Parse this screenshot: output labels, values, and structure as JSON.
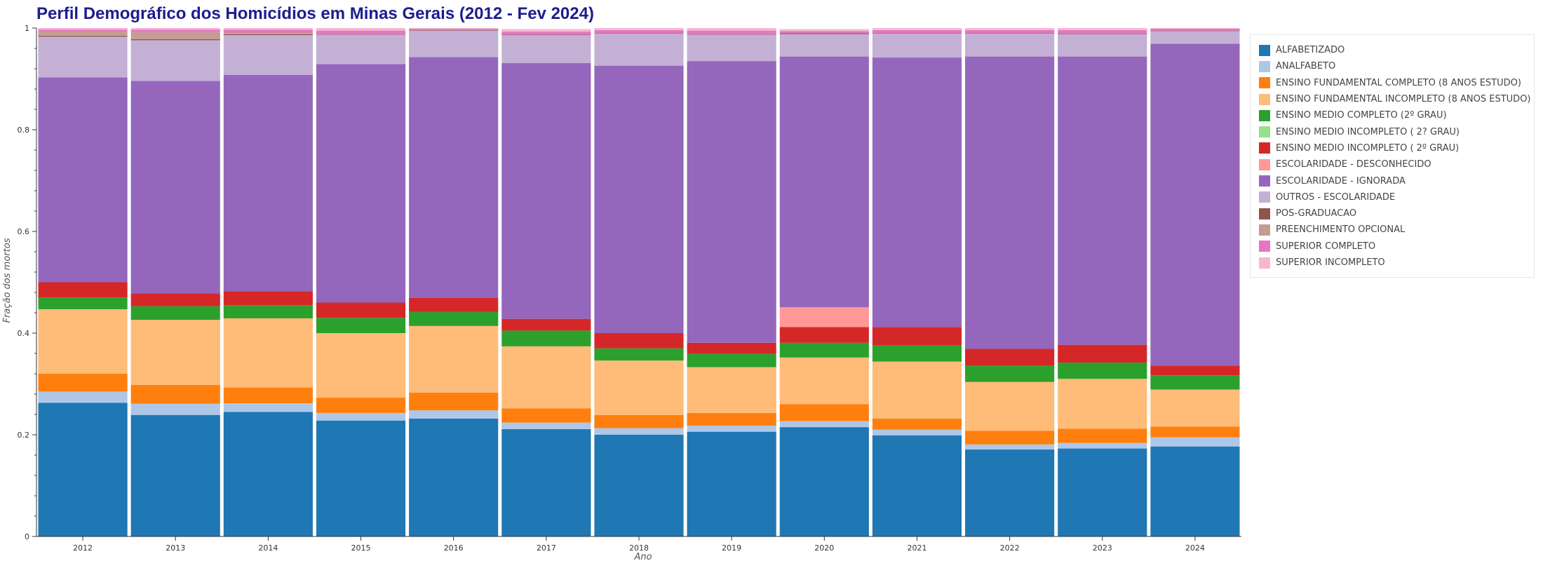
{
  "title": "Perfil Demográfico dos Homicídios em Minas Gerais (2012 - Fev 2024)",
  "chart_data": {
    "type": "bar",
    "stacked": true,
    "normalized": true,
    "title": "Perfil Demográfico dos Homicídios em Minas Gerais (2012 - Fev 2024)",
    "xlabel": "Ano",
    "ylabel": "Fração dos mortos",
    "ylim": [
      0,
      1
    ],
    "yticks": [
      "0",
      "0.2",
      "0.4",
      "0.6",
      "0.8",
      "1"
    ],
    "legend_position": "right",
    "categories": [
      "2012",
      "2013",
      "2014",
      "2015",
      "2016",
      "2017",
      "2018",
      "2019",
      "2020",
      "2021",
      "2022",
      "2023",
      "2024"
    ],
    "series": [
      {
        "name": "ALFABETIZADO",
        "color": "#1f77b4",
        "values": [
          0.263,
          0.239,
          0.245,
          0.228,
          0.232,
          0.211,
          0.2,
          0.206,
          0.215,
          0.199,
          0.171,
          0.173,
          0.177
        ]
      },
      {
        "name": "ANALFABETO",
        "color": "#aec7e8",
        "values": [
          0.022,
          0.022,
          0.017,
          0.015,
          0.016,
          0.013,
          0.013,
          0.012,
          0.012,
          0.011,
          0.01,
          0.011,
          0.018
        ]
      },
      {
        "name": "ENSINO FUNDAMENTAL COMPLETO (8 ANOS ESTUDO)",
        "color": "#ff7f0e",
        "values": [
          0.035,
          0.037,
          0.031,
          0.03,
          0.035,
          0.028,
          0.026,
          0.025,
          0.033,
          0.022,
          0.027,
          0.028,
          0.021
        ]
      },
      {
        "name": "ENSINO FUNDAMENTAL INCOMPLETO (8 ANOS ESTUDO)",
        "color": "#ffbb78",
        "values": [
          0.127,
          0.128,
          0.136,
          0.127,
          0.131,
          0.122,
          0.107,
          0.09,
          0.092,
          0.112,
          0.096,
          0.098,
          0.073
        ]
      },
      {
        "name": "ENSINO MEDIO COMPLETO (2º GRAU)",
        "color": "#2ca02c",
        "values": [
          0.023,
          0.027,
          0.026,
          0.03,
          0.028,
          0.031,
          0.024,
          0.026,
          0.029,
          0.032,
          0.032,
          0.032,
          0.028
        ]
      },
      {
        "name": "ENSINO MEDIO INCOMPLETO ( 2? GRAU)",
        "color": "#98df8a",
        "values": [
          0,
          0,
          0,
          0,
          0,
          0,
          0,
          0,
          0,
          0,
          0,
          0,
          0
        ]
      },
      {
        "name": "ENSINO MEDIO INCOMPLETO ( 2º GRAU)",
        "color": "#d62728",
        "values": [
          0.03,
          0.025,
          0.027,
          0.03,
          0.027,
          0.023,
          0.03,
          0.022,
          0.031,
          0.036,
          0.033,
          0.035,
          0.019
        ]
      },
      {
        "name": "ESCOLARIDADE - DESCONHECIDO",
        "color": "#ff9896",
        "values": [
          0,
          0,
          0,
          0,
          0,
          0,
          0,
          0,
          0.039,
          0,
          0,
          0,
          0
        ]
      },
      {
        "name": "ESCOLARIDADE - IGNORADA",
        "color": "#9467bd",
        "values": [
          0.403,
          0.418,
          0.426,
          0.469,
          0.474,
          0.503,
          0.526,
          0.554,
          0.493,
          0.53,
          0.575,
          0.567,
          0.633
        ]
      },
      {
        "name": "OUTROS - ESCOLARIDADE",
        "color": "#c5b0d5",
        "values": [
          0.08,
          0.08,
          0.078,
          0.058,
          0.052,
          0.055,
          0.063,
          0.052,
          0.044,
          0.047,
          0.045,
          0.044,
          0.025
        ]
      },
      {
        "name": "POS-GRADUACAO",
        "color": "#8c564b",
        "values": [
          0.002,
          0.002,
          0.002,
          0.001,
          0.001,
          0.001,
          0.001,
          0.001,
          0.002,
          0.001,
          0.001,
          0.001,
          0.001
        ]
      },
      {
        "name": "PREENCHIMENTO OPCIONAL",
        "color": "#c49c94",
        "values": [
          0.008,
          0.014,
          0.003,
          0,
          0,
          0,
          0,
          0,
          0,
          0,
          0,
          0,
          0
        ]
      },
      {
        "name": "SUPERIOR COMPLETO",
        "color": "#e377c2",
        "values": [
          0.004,
          0.005,
          0.006,
          0.007,
          0.003,
          0.006,
          0.006,
          0.007,
          0.004,
          0.006,
          0.006,
          0.007,
          0.004
        ]
      },
      {
        "name": "SUPERIOR INCOMPLETO",
        "color": "#f7b6d2",
        "values": [
          0.003,
          0.003,
          0.003,
          0.005,
          0.001,
          0.005,
          0.004,
          0.005,
          0.004,
          0.004,
          0.004,
          0.004,
          0.001
        ]
      }
    ]
  }
}
